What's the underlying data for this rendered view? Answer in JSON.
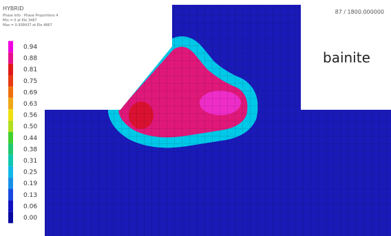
{
  "header": {
    "title": "HYBRID",
    "info": "Phase Info : Phase Proportions 4",
    "min": "Min = 0 at Ele 3467",
    "max": "Max = 0.938437 at Ele 4867"
  },
  "time": "87 / 1800.000000",
  "phase_label": "bainite",
  "legend": {
    "labels": [
      "0.94",
      "0.88",
      "0.81",
      "0.75",
      "0.69",
      "0.63",
      "0.56",
      "0.50",
      "0.44",
      "0.38",
      "0.31",
      "0.25",
      "0.19",
      "0.13",
      "0.06",
      "0.00"
    ]
  }
}
